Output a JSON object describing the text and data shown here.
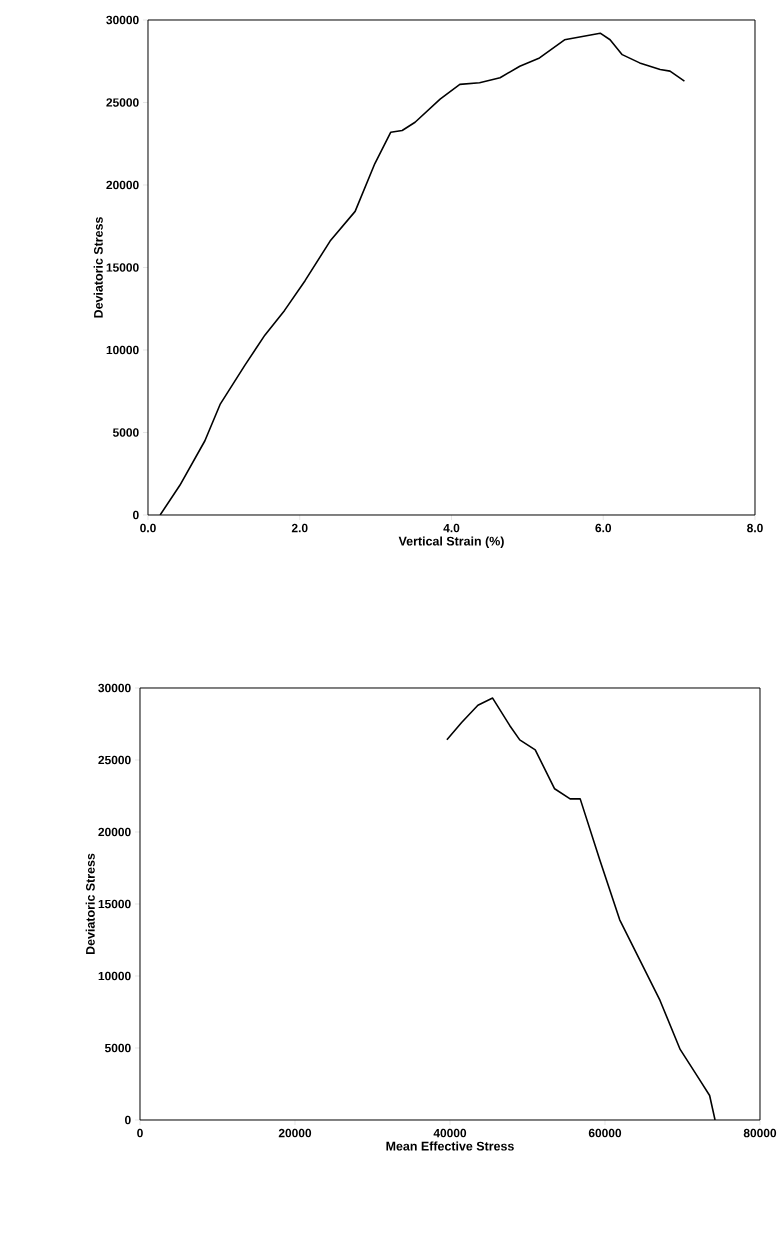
{
  "chart_data": [
    {
      "type": "line",
      "xlabel": "Vertical Strain (%)",
      "ylabel": "Deviatoric Stress",
      "xlim": [
        0,
        8
      ],
      "ylim": [
        0,
        30000
      ],
      "xticks": [
        {
          "value": 0,
          "label": "0.0"
        },
        {
          "value": 2,
          "label": "2.0"
        },
        {
          "value": 4,
          "label": "4.0"
        },
        {
          "value": 6,
          "label": "6.0"
        },
        {
          "value": 8,
          "label": "8.0"
        }
      ],
      "yticks": [
        0,
        5000,
        10000,
        15000,
        20000,
        25000,
        30000
      ],
      "grid": false,
      "marker": "none",
      "line_style": "solid",
      "series": [
        {
          "color": "#000000",
          "x": [
            0.16,
            0.42,
            0.75,
            0.95,
            1.28,
            1.54,
            1.8,
            2.07,
            2.4,
            2.73,
            2.99,
            3.2,
            3.35,
            3.52,
            3.85,
            4.11,
            4.37,
            4.64,
            4.9,
            5.16,
            5.49,
            5.96,
            6.09,
            6.25,
            6.48,
            6.75,
            6.88,
            7.07
          ],
          "values": [
            0,
            1800,
            4500,
            6700,
            9100,
            10900,
            12400,
            14200,
            16600,
            18400,
            21300,
            23200,
            23300,
            23800,
            25200,
            26100,
            26200,
            26500,
            27200,
            27700,
            28800,
            29200,
            28800,
            27900,
            27400,
            27000,
            26900,
            26300
          ]
        }
      ]
    },
    {
      "type": "line",
      "xlabel": "Mean Effective Stress",
      "ylabel": "Deviatoric Stress",
      "xlim": [
        0,
        80000
      ],
      "ylim": [
        0,
        30000
      ],
      "xticks": [
        0,
        20000,
        40000,
        60000,
        80000
      ],
      "yticks": [
        0,
        5000,
        10000,
        15000,
        20000,
        25000,
        30000
      ],
      "grid": false,
      "marker": "none",
      "line_style": "solid",
      "series": [
        {
          "color": "#000000",
          "x": [
            39600,
            41500,
            43600,
            45500,
            47700,
            49000,
            51000,
            53500,
            55500,
            56800,
            59300,
            61900,
            64500,
            67100,
            69700,
            72200,
            73500,
            74200
          ],
          "values": [
            26400,
            27600,
            28800,
            29300,
            27400,
            26400,
            25700,
            23000,
            22300,
            22300,
            18100,
            13900,
            11100,
            8300,
            4900,
            2800,
            1700,
            0
          ]
        }
      ]
    }
  ]
}
